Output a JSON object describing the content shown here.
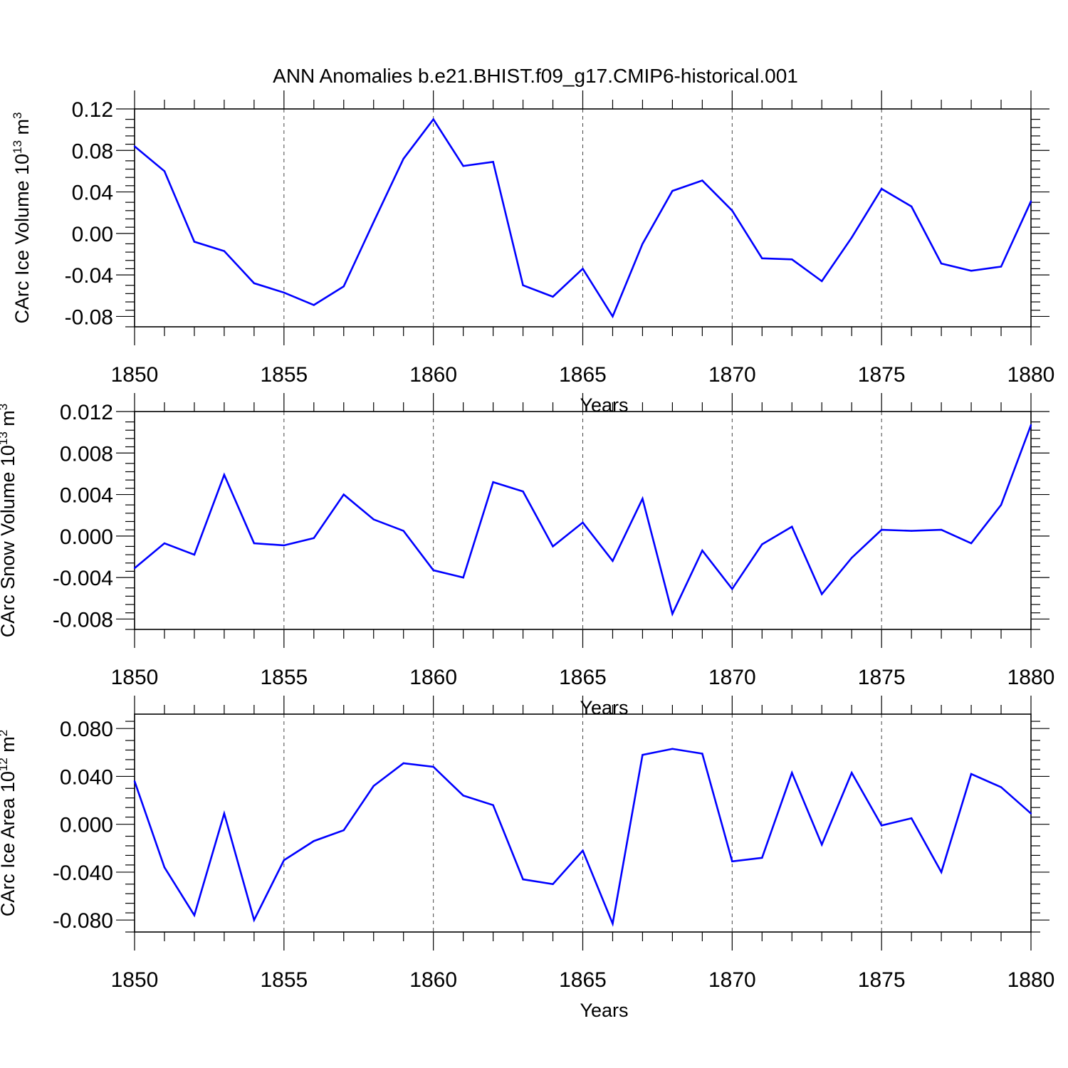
{
  "colors": {
    "line": "#0000ff",
    "axis": "#000000",
    "grid": "#444444"
  },
  "chart_data": {
    "type": "line",
    "title": "ANN Anomalies b.e21.BHIST.f09_g17.CMIP6-historical.001",
    "panels": [
      {
        "ylabel_main": "CArc Ice Volume 10",
        "ylabel_exp": "13",
        "ylabel_unit": "m",
        "ylabel_unit_exp": "3",
        "xlabel": "Years",
        "xlim": [
          1850,
          1880
        ],
        "ylim": [
          -0.09,
          0.12
        ],
        "xticks": [
          1850,
          1855,
          1860,
          1865,
          1870,
          1875,
          1880
        ],
        "xtick_labels": [
          "1850",
          "1855",
          "1860",
          "1865",
          "1870",
          "1875",
          "1880"
        ],
        "yticks": [
          -0.08,
          -0.04,
          0.0,
          0.04,
          0.08,
          0.12
        ],
        "ytick_labels": [
          "-0.08",
          "-0.04",
          "0.00",
          "0.04",
          "0.08",
          "0.12"
        ],
        "x": [
          1850,
          1851,
          1852,
          1853,
          1854,
          1855,
          1856,
          1857,
          1858,
          1859,
          1860,
          1861,
          1862,
          1863,
          1864,
          1865,
          1866,
          1867,
          1868,
          1869,
          1870,
          1871,
          1872,
          1873,
          1874,
          1875,
          1876,
          1877,
          1878,
          1879,
          1880
        ],
        "values": [
          0.084,
          0.06,
          -0.008,
          -0.017,
          -0.048,
          -0.057,
          -0.069,
          -0.051,
          0.011,
          0.072,
          0.11,
          0.065,
          0.069,
          -0.05,
          -0.061,
          -0.034,
          -0.08,
          -0.01,
          0.041,
          0.051,
          0.022,
          -0.024,
          -0.025,
          -0.046,
          -0.004,
          0.043,
          0.026,
          -0.029,
          -0.036,
          -0.032,
          0.031
        ]
      },
      {
        "ylabel_main": "CArc Snow Volume 10",
        "ylabel_exp": "13",
        "ylabel_unit": "m",
        "ylabel_unit_exp": "3",
        "xlabel": "Years",
        "xlim": [
          1850,
          1880
        ],
        "ylim": [
          -0.009,
          0.012
        ],
        "xticks": [
          1850,
          1855,
          1860,
          1865,
          1870,
          1875,
          1880
        ],
        "xtick_labels": [
          "1850",
          "1855",
          "1860",
          "1865",
          "1870",
          "1875",
          "1880"
        ],
        "yticks": [
          -0.008,
          -0.004,
          0.0,
          0.004,
          0.008,
          0.012
        ],
        "ytick_labels": [
          "-0.008",
          "-0.004",
          "0.000",
          "0.004",
          "0.008",
          "0.012"
        ],
        "x": [
          1850,
          1851,
          1852,
          1853,
          1854,
          1855,
          1856,
          1857,
          1858,
          1859,
          1860,
          1861,
          1862,
          1863,
          1864,
          1865,
          1866,
          1867,
          1868,
          1869,
          1870,
          1871,
          1872,
          1873,
          1874,
          1875,
          1876,
          1877,
          1878,
          1879,
          1880
        ],
        "values": [
          -0.0031,
          -0.0007,
          -0.0018,
          0.0059,
          -0.0007,
          -0.0009,
          -0.0002,
          0.004,
          0.0016,
          0.0005,
          -0.0033,
          -0.004,
          0.0052,
          0.0043,
          -0.001,
          0.0013,
          -0.0024,
          0.0036,
          -0.0075,
          -0.0014,
          -0.0051,
          -0.0008,
          0.0009,
          -0.0056,
          -0.0021,
          0.0006,
          0.0005,
          0.0006,
          -0.0007,
          0.003,
          0.0107
        ]
      },
      {
        "ylabel_main": "CArc Ice Area 10",
        "ylabel_exp": "12",
        "ylabel_unit": "m",
        "ylabel_unit_exp": "2",
        "xlabel": "Years",
        "xlim": [
          1850,
          1880
        ],
        "ylim": [
          -0.09,
          0.092
        ],
        "xticks": [
          1850,
          1855,
          1860,
          1865,
          1870,
          1875,
          1880
        ],
        "xtick_labels": [
          "1850",
          "1855",
          "1860",
          "1865",
          "1870",
          "1875",
          "1880"
        ],
        "yticks": [
          -0.08,
          -0.04,
          0.0,
          0.04,
          0.08
        ],
        "ytick_labels": [
          "-0.080",
          "-0.040",
          "0.000",
          "0.040",
          "0.080"
        ],
        "x": [
          1850,
          1851,
          1852,
          1853,
          1854,
          1855,
          1856,
          1857,
          1858,
          1859,
          1860,
          1861,
          1862,
          1863,
          1864,
          1865,
          1866,
          1867,
          1868,
          1869,
          1870,
          1871,
          1872,
          1873,
          1874,
          1875,
          1876,
          1877,
          1878,
          1879,
          1880
        ],
        "values": [
          0.036,
          -0.036,
          -0.076,
          0.009,
          -0.08,
          -0.03,
          -0.014,
          -0.005,
          0.032,
          0.051,
          0.048,
          0.024,
          0.016,
          -0.046,
          -0.05,
          -0.022,
          -0.083,
          0.058,
          0.063,
          0.059,
          -0.031,
          -0.028,
          0.043,
          -0.017,
          0.043,
          -0.001,
          0.005,
          -0.04,
          0.042,
          0.031,
          0.009
        ]
      }
    ]
  }
}
